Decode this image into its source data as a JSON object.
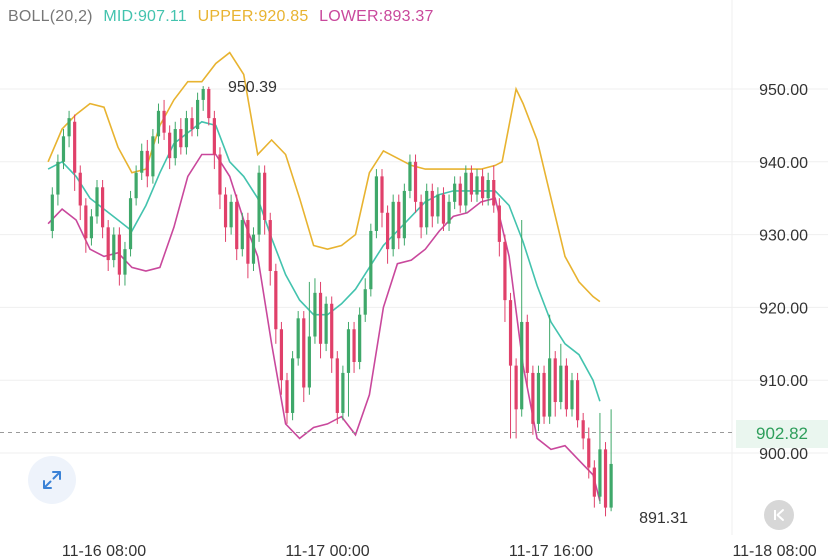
{
  "indicator": {
    "name": "BOLL(20,2)",
    "mid_label": "MID:907.11",
    "upper_label": "UPPER:920.85",
    "lower_label": "LOWER:893.37"
  },
  "current_price_label": "902.82",
  "icons": {
    "expand": "expand-arrows-icon",
    "back": "skip-back-icon"
  },
  "colors": {
    "up": "#3fa86a",
    "down": "#e0406a",
    "mid": "#43c3ae",
    "upper": "#e8b330",
    "lower": "#c9489c",
    "grid": "#efefef",
    "axis_text": "#333333",
    "price_tag_bg": "#eaf6ef",
    "price_tag_text": "#2e9e5b"
  },
  "chart_data": {
    "type": "candlestick",
    "indicator": "BOLL(20,2)",
    "y_ticks": [
      "950.00",
      "940.00",
      "930.00",
      "920.00",
      "910.00",
      "900.00"
    ],
    "y_tick_values": [
      950,
      940,
      930,
      920,
      910,
      900
    ],
    "y_range": [
      893,
      957
    ],
    "x_tick_labels": [
      "11-16 08:00",
      "11-17 00:00",
      "11-17 16:00",
      "11-18 08:00"
    ],
    "x_tick_times": [
      0,
      16,
      32,
      48
    ],
    "x_range": [
      -4,
      47
    ],
    "current_price": 902.82,
    "annotations": {
      "high": "950.39",
      "low": "891.31",
      "high_value": 950.39,
      "low_value": 891.31,
      "high_time": 7.3,
      "low_time": 46.1
    },
    "upper_band": [
      [
        -4,
        940.0
      ],
      [
        -3,
        944.5
      ],
      [
        -2,
        946.5
      ],
      [
        -1,
        948.0
      ],
      [
        0,
        947.5
      ],
      [
        1,
        942.0
      ],
      [
        2,
        938.5
      ],
      [
        3,
        939.0
      ],
      [
        4,
        945.0
      ],
      [
        5,
        948.5
      ],
      [
        6,
        951.0
      ],
      [
        7,
        951.0
      ],
      [
        8,
        953.5
      ],
      [
        9,
        955.0
      ],
      [
        10,
        952.0
      ],
      [
        11,
        941.0
      ],
      [
        12,
        943.0
      ],
      [
        13,
        941.0
      ],
      [
        14,
        935.0
      ],
      [
        15,
        928.5
      ],
      [
        16,
        928.0
      ],
      [
        17,
        928.5
      ],
      [
        18,
        930.0
      ],
      [
        19,
        938.5
      ],
      [
        20,
        941.5
      ],
      [
        21,
        940.5
      ],
      [
        22,
        939.5
      ],
      [
        23,
        939.0
      ],
      [
        24,
        939.0
      ],
      [
        25,
        939.0
      ],
      [
        26,
        939.0
      ],
      [
        27,
        939.0
      ],
      [
        28,
        939.5
      ],
      [
        28.5,
        940.0
      ],
      [
        29,
        945.0
      ],
      [
        29.5,
        950.0
      ],
      [
        30,
        948.0
      ],
      [
        31,
        943.0
      ],
      [
        32,
        935.0
      ],
      [
        33,
        927.0
      ],
      [
        34,
        923.5
      ],
      [
        35,
        921.5
      ],
      [
        35.5,
        920.8
      ]
    ],
    "mid_band": [
      [
        -4,
        939.0
      ],
      [
        -3,
        940.0
      ],
      [
        -2,
        938.0
      ],
      [
        -1,
        935.0
      ],
      [
        0,
        933.5
      ],
      [
        1,
        932.0
      ],
      [
        2,
        930.5
      ],
      [
        3,
        934.0
      ],
      [
        4,
        938.5
      ],
      [
        5,
        942.5
      ],
      [
        6,
        944.0
      ],
      [
        7,
        945.5
      ],
      [
        8,
        945.0
      ],
      [
        9,
        940.0
      ],
      [
        10,
        938.0
      ],
      [
        11,
        935.0
      ],
      [
        12,
        929.5
      ],
      [
        13,
        924.5
      ],
      [
        14,
        921.0
      ],
      [
        15,
        919.0
      ],
      [
        16,
        919.0
      ],
      [
        17,
        920.5
      ],
      [
        18,
        922.5
      ],
      [
        19,
        925.5
      ],
      [
        20,
        928.5
      ],
      [
        21,
        930.5
      ],
      [
        22,
        932.5
      ],
      [
        23,
        934.5
      ],
      [
        24,
        935.5
      ],
      [
        25,
        936.0
      ],
      [
        26,
        936.0
      ],
      [
        27,
        936.0
      ],
      [
        28,
        936.0
      ],
      [
        29,
        934.0
      ],
      [
        30,
        929.0
      ],
      [
        31,
        923.0
      ],
      [
        32,
        918.0
      ],
      [
        33,
        915.0
      ],
      [
        34,
        913.5
      ],
      [
        35,
        910.0
      ],
      [
        35.5,
        907.1
      ]
    ],
    "lower_band": [
      [
        -4,
        931.5
      ],
      [
        -3,
        933.5
      ],
      [
        -2,
        932.0
      ],
      [
        -1,
        928.0
      ],
      [
        0,
        927.0
      ],
      [
        1,
        927.5
      ],
      [
        2,
        925.5
      ],
      [
        3,
        925.0
      ],
      [
        4,
        925.5
      ],
      [
        5,
        931.0
      ],
      [
        6,
        938.0
      ],
      [
        7,
        941.0
      ],
      [
        8,
        941.0
      ],
      [
        9,
        938.0
      ],
      [
        10,
        932.0
      ],
      [
        11,
        927.0
      ],
      [
        12,
        915.0
      ],
      [
        13,
        904.0
      ],
      [
        14,
        902.0
      ],
      [
        15,
        903.5
      ],
      [
        16,
        904.0
      ],
      [
        17,
        905.0
      ],
      [
        18,
        902.5
      ],
      [
        19,
        908.0
      ],
      [
        20,
        920.0
      ],
      [
        21,
        926.0
      ],
      [
        22,
        926.5
      ],
      [
        23,
        928.0
      ],
      [
        24,
        930.5
      ],
      [
        25,
        932.5
      ],
      [
        26,
        933.0
      ],
      [
        27,
        934.5
      ],
      [
        28,
        935.0
      ],
      [
        29,
        927.0
      ],
      [
        30,
        912.0
      ],
      [
        31,
        902.0
      ],
      [
        32,
        900.5
      ],
      [
        33,
        901.0
      ],
      [
        34,
        899.0
      ],
      [
        35,
        897.0
      ],
      [
        35.5,
        893.4
      ]
    ],
    "candles": [
      [
        -3.7,
        930.5,
        935.5,
        936.5,
        929.5
      ],
      [
        -3.3,
        935.5,
        940.0,
        941.0,
        934.0
      ],
      [
        -2.9,
        940.0,
        943.5,
        944.5,
        939.0
      ],
      [
        -2.5,
        943.5,
        946.0,
        947.0,
        942.0
      ],
      [
        -2.1,
        945.5,
        938.5,
        946.5,
        936.0
      ],
      [
        -1.7,
        938.5,
        934.0,
        939.5,
        932.0
      ],
      [
        -1.3,
        934.0,
        929.5,
        935.0,
        927.5
      ],
      [
        -0.9,
        929.5,
        932.5,
        933.5,
        928.5
      ],
      [
        -0.5,
        932.5,
        936.5,
        937.5,
        931.5
      ],
      [
        -0.1,
        936.5,
        931.0,
        937.5,
        929.5
      ],
      [
        0.3,
        931.0,
        926.5,
        932.0,
        925.0
      ],
      [
        0.7,
        926.5,
        930.0,
        931.0,
        925.5
      ],
      [
        1.1,
        930.0,
        924.5,
        931.0,
        923.0
      ],
      [
        1.5,
        924.5,
        928.0,
        929.0,
        923.0
      ],
      [
        1.9,
        928.0,
        935.0,
        936.0,
        927.0
      ],
      [
        2.3,
        935.0,
        938.5,
        939.5,
        934.0
      ],
      [
        2.7,
        938.5,
        941.5,
        942.5,
        937.5
      ],
      [
        3.1,
        941.5,
        938.0,
        943.0,
        936.5
      ],
      [
        3.5,
        938.0,
        943.5,
        944.5,
        937.0
      ],
      [
        3.9,
        943.5,
        947.0,
        948.0,
        942.5
      ],
      [
        4.3,
        947.0,
        944.0,
        948.5,
        943.0
      ],
      [
        4.7,
        944.0,
        940.5,
        945.0,
        939.0
      ],
      [
        5.1,
        940.5,
        944.5,
        945.5,
        939.5
      ],
      [
        5.5,
        944.5,
        942.0,
        946.0,
        941.0
      ],
      [
        5.9,
        942.0,
        946.0,
        947.0,
        941.0
      ],
      [
        6.3,
        946.0,
        944.5,
        947.5,
        943.5
      ],
      [
        6.7,
        944.5,
        948.5,
        949.5,
        943.5
      ],
      [
        7.1,
        948.5,
        950.0,
        950.4,
        947.0
      ],
      [
        7.5,
        950.0,
        946.0,
        950.3,
        945.0
      ],
      [
        7.9,
        946.0,
        941.0,
        947.0,
        939.0
      ],
      [
        8.3,
        941.0,
        935.5,
        942.0,
        933.5
      ],
      [
        8.7,
        935.5,
        931.0,
        936.5,
        929.0
      ],
      [
        9.1,
        931.0,
        934.5,
        935.5,
        930.0
      ],
      [
        9.5,
        934.5,
        928.0,
        935.5,
        926.5
      ],
      [
        9.9,
        928.0,
        932.0,
        933.0,
        927.0
      ],
      [
        10.3,
        932.0,
        926.0,
        933.0,
        924.0
      ],
      [
        10.7,
        926.0,
        930.0,
        931.0,
        925.0
      ],
      [
        11.1,
        930.0,
        938.5,
        939.5,
        929.0
      ],
      [
        11.5,
        938.5,
        932.0,
        939.5,
        930.0
      ],
      [
        11.9,
        932.0,
        925.0,
        933.0,
        923.0
      ],
      [
        12.3,
        925.0,
        917.0,
        926.0,
        915.0
      ],
      [
        12.7,
        917.0,
        910.0,
        918.0,
        908.0
      ],
      [
        13.1,
        910.0,
        905.5,
        911.0,
        904.0
      ],
      [
        13.5,
        905.5,
        913.0,
        914.0,
        904.5
      ],
      [
        13.9,
        913.0,
        918.5,
        919.5,
        912.0
      ],
      [
        14.3,
        918.5,
        909.0,
        919.5,
        907.0
      ],
      [
        14.7,
        909.0,
        916.0,
        923.5,
        908.0
      ],
      [
        15.1,
        916.0,
        922.0,
        924.0,
        915.0
      ],
      [
        15.5,
        922.0,
        915.0,
        923.5,
        913.0
      ],
      [
        15.9,
        915.0,
        920.5,
        921.5,
        914.0
      ],
      [
        16.3,
        920.5,
        913.0,
        921.5,
        911.0
      ],
      [
        16.7,
        913.0,
        905.5,
        914.0,
        904.0
      ],
      [
        17.1,
        905.5,
        911.0,
        912.0,
        904.5
      ],
      [
        17.5,
        911.0,
        917.0,
        918.0,
        905.0
      ],
      [
        17.9,
        917.0,
        912.5,
        918.0,
        911.0
      ],
      [
        18.3,
        912.5,
        919.0,
        920.0,
        911.5
      ],
      [
        18.7,
        919.0,
        922.5,
        924.0,
        918.0
      ],
      [
        19.1,
        922.5,
        930.5,
        931.5,
        921.5
      ],
      [
        19.5,
        930.5,
        938.0,
        939.0,
        929.5
      ],
      [
        19.9,
        938.0,
        933.0,
        939.0,
        931.0
      ],
      [
        20.3,
        933.0,
        928.0,
        934.0,
        926.0
      ],
      [
        20.7,
        928.0,
        934.5,
        935.5,
        927.0
      ],
      [
        21.1,
        934.5,
        929.5,
        935.5,
        928.0
      ],
      [
        21.5,
        929.5,
        936.0,
        937.0,
        928.5
      ],
      [
        21.9,
        936.0,
        940.0,
        941.0,
        935.0
      ],
      [
        22.3,
        940.0,
        934.5,
        941.0,
        933.0
      ],
      [
        22.7,
        934.5,
        931.0,
        935.5,
        929.5
      ],
      [
        23.1,
        931.0,
        936.0,
        937.0,
        930.0
      ],
      [
        23.5,
        936.0,
        932.5,
        937.0,
        931.0
      ],
      [
        23.9,
        932.5,
        935.5,
        936.5,
        931.5
      ],
      [
        24.3,
        935.5,
        931.5,
        936.5,
        930.5
      ],
      [
        24.7,
        931.5,
        934.5,
        935.5,
        930.5
      ],
      [
        25.1,
        934.5,
        937.0,
        938.0,
        933.5
      ],
      [
        25.5,
        937.0,
        934.0,
        938.0,
        933.0
      ],
      [
        25.9,
        934.0,
        938.5,
        939.5,
        933.0
      ],
      [
        26.3,
        938.5,
        935.5,
        939.5,
        934.5
      ],
      [
        26.7,
        935.5,
        938.0,
        939.0,
        934.5
      ],
      [
        27.1,
        938.0,
        935.0,
        939.0,
        934.0
      ],
      [
        27.5,
        935.0,
        937.5,
        938.5,
        934.0
      ],
      [
        27.9,
        937.5,
        934.0,
        939.5,
        933.0
      ],
      [
        28.3,
        934.0,
        929.0,
        935.0,
        927.0
      ],
      [
        28.7,
        929.0,
        921.0,
        930.0,
        918.0
      ],
      [
        29.1,
        921.0,
        912.0,
        922.0,
        902.0
      ],
      [
        29.5,
        912.0,
        906.0,
        913.0,
        902.0
      ],
      [
        29.9,
        906.0,
        918.0,
        932.0,
        905.0
      ],
      [
        30.3,
        918.0,
        911.0,
        919.0,
        909.0
      ],
      [
        30.7,
        911.0,
        904.0,
        912.0,
        902.5
      ],
      [
        31.1,
        904.0,
        911.0,
        912.0,
        903.0
      ],
      [
        31.5,
        911.0,
        905.0,
        912.0,
        904.0
      ],
      [
        31.9,
        905.0,
        913.0,
        919.0,
        904.0
      ],
      [
        32.3,
        913.0,
        907.0,
        914.0,
        905.0
      ],
      [
        32.7,
        907.0,
        912.0,
        915.0,
        906.0
      ],
      [
        33.1,
        912.0,
        906.0,
        913.0,
        905.0
      ],
      [
        33.5,
        906.0,
        910.0,
        911.0,
        905.0
      ],
      [
        33.9,
        910.0,
        904.5,
        911.0,
        903.5
      ],
      [
        34.3,
        904.5,
        902.0,
        905.5,
        900.5
      ],
      [
        34.7,
        902.0,
        898.0,
        903.5,
        896.5
      ],
      [
        35.1,
        898.0,
        894.0,
        899.0,
        892.5
      ],
      [
        35.5,
        894.0,
        900.5,
        905.5,
        893.0
      ],
      [
        35.9,
        900.5,
        892.5,
        901.5,
        891.3
      ],
      [
        36.3,
        892.5,
        898.5,
        906.0,
        892.0
      ]
    ]
  }
}
